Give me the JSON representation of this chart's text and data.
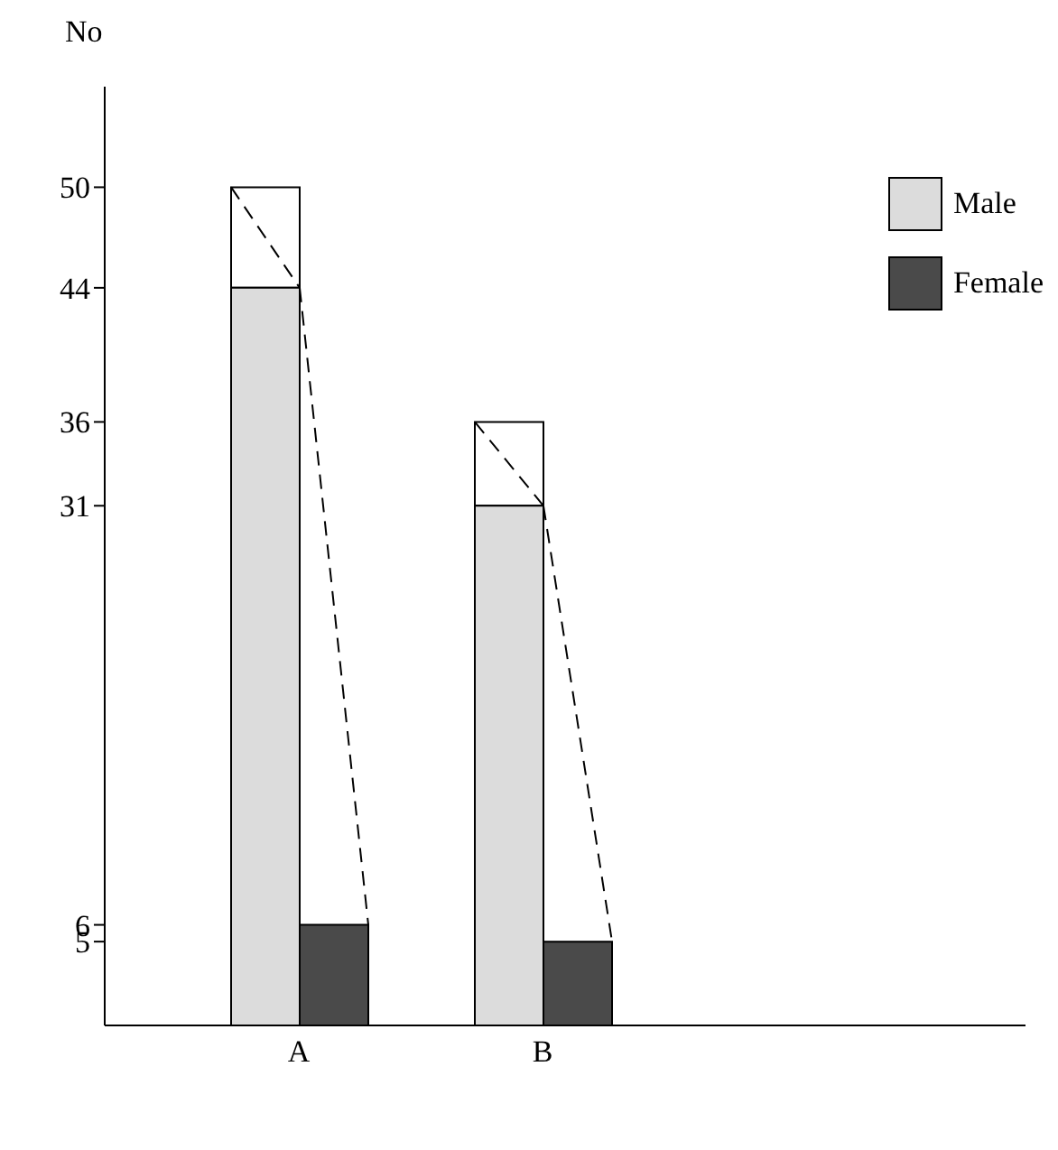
{
  "chart_data": {
    "type": "bar",
    "categories": [
      "A",
      "B"
    ],
    "ylabel": "No",
    "ylim": [
      0,
      56
    ],
    "yticks": [
      5,
      6,
      31,
      36,
      44,
      50
    ],
    "legend": "top right",
    "grid": false,
    "series": [
      {
        "color": "#ffffff",
        "values": [
          6,
          5
        ],
        "base": [
          44,
          31
        ]
      },
      {
        "name": "Male",
        "color": "#dcdcdc",
        "values": [
          44,
          31
        ]
      },
      {
        "name": "Female",
        "color": "#4a4a4a",
        "values": [
          6,
          5
        ]
      }
    ]
  }
}
